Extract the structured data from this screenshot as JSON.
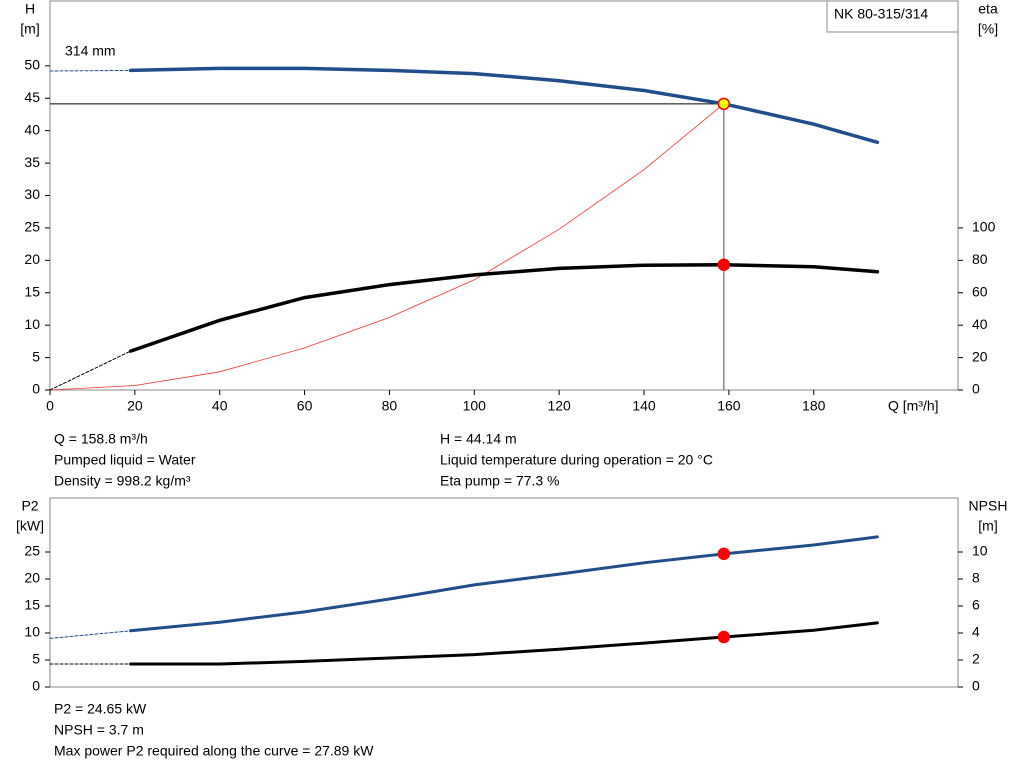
{
  "chart_data": [
    {
      "type": "line",
      "label": "NK 80-315/314",
      "curve_label": "314 mm",
      "y_label": "H",
      "y_unit": "[m]",
      "y2_label": "eta",
      "y2_unit": "[%]",
      "x_label": "Q [m³/h]",
      "xlim": [
        0,
        214
      ],
      "ylim": [
        0,
        60
      ],
      "y2lim": [
        0,
        240
      ],
      "xticks": [
        0,
        20,
        40,
        60,
        80,
        100,
        120,
        140,
        160,
        180
      ],
      "yticks": [
        0,
        5,
        10,
        15,
        20,
        25,
        30,
        35,
        40,
        45,
        50
      ],
      "y2ticks": [
        0,
        20,
        40,
        60,
        80,
        100
      ],
      "duty_q": 158.8,
      "series": [
        {
          "color": "#1f4e8c",
          "width": 3.5,
          "dash": false,
          "marker": true,
          "marker_fill": "#ffff00",
          "x": [
            19,
            40,
            60,
            80,
            100,
            120,
            140,
            158.8,
            180,
            195
          ],
          "values": [
            49.3,
            49.6,
            49.6,
            49.3,
            48.8,
            47.7,
            46.2,
            44.14,
            41,
            38.2
          ]
        },
        {
          "color": "#1f4e8c",
          "width": 1,
          "dash": true,
          "x": [
            0,
            19
          ],
          "values": [
            49.2,
            49.3
          ]
        },
        {
          "color": "#ff3030",
          "width": 0.8,
          "dash": false,
          "x": [
            0,
            20,
            40,
            60,
            80,
            100,
            120,
            140,
            158.8
          ],
          "values": [
            0,
            0.7,
            2.8,
            6.5,
            11.2,
            17,
            24.8,
            34,
            44.14
          ]
        },
        {
          "color": "#000000",
          "width": 3.5,
          "dash": false,
          "axis": "y2",
          "marker": true,
          "marker_fill": "#ff0000",
          "x": [
            19,
            40,
            60,
            80,
            100,
            120,
            140,
            158.8,
            180,
            195
          ],
          "values": [
            24,
            43,
            57,
            65,
            71,
            75,
            77,
            77.3,
            76,
            73
          ]
        },
        {
          "color": "#000000",
          "width": 1,
          "dash": true,
          "axis": "y2",
          "x": [
            0,
            19
          ],
          "values": [
            0,
            24
          ]
        }
      ],
      "notes": [
        "Q = 158.8 m³/h",
        "Pumped liquid = Water",
        "Density = 998.2 kg/m³",
        "H = 44.14 m",
        "Liquid temperature during operation = 20 °C",
        "Eta pump = 77.3 %"
      ]
    },
    {
      "type": "line",
      "y_label": "P2",
      "y_unit": "[kW]",
      "y2_label": "NPSH",
      "y2_unit": "[m]",
      "xlim": [
        0,
        214
      ],
      "ylim": [
        0,
        35
      ],
      "y2lim": [
        0,
        14
      ],
      "yticks": [
        0,
        5,
        10,
        15,
        20,
        25
      ],
      "y2ticks": [
        0,
        2,
        4,
        6,
        8,
        10
      ],
      "duty_q": 158.8,
      "series": [
        {
          "color": "#1f4e8c",
          "width": 3,
          "dash": false,
          "marker": true,
          "marker_fill": "#ff0000",
          "x": [
            19,
            40,
            60,
            80,
            100,
            120,
            140,
            158.8,
            180,
            195
          ],
          "values": [
            10.4,
            12,
            13.9,
            16.3,
            18.9,
            20.9,
            23,
            24.65,
            26.3,
            27.8
          ]
        },
        {
          "color": "#1f4e8c",
          "width": 1,
          "dash": true,
          "x": [
            0,
            19
          ],
          "values": [
            9,
            10.4
          ]
        },
        {
          "color": "#000000",
          "width": 3,
          "dash": false,
          "axis": "y2",
          "marker": true,
          "marker_fill": "#ff0000",
          "x": [
            19,
            40,
            60,
            80,
            100,
            120,
            140,
            158.8,
            180,
            195
          ],
          "values": [
            1.7,
            1.7,
            1.9,
            2.15,
            2.4,
            2.8,
            3.25,
            3.7,
            4.2,
            4.75
          ]
        },
        {
          "color": "#000000",
          "width": 1,
          "dash": true,
          "axis": "y2",
          "x": [
            0,
            19
          ],
          "values": [
            1.7,
            1.7
          ]
        }
      ],
      "notes": [
        "P2 = 24.65 kW",
        "NPSH = 3.7 m",
        "Max power P2 required along the curve = 27.89 kW"
      ]
    }
  ]
}
